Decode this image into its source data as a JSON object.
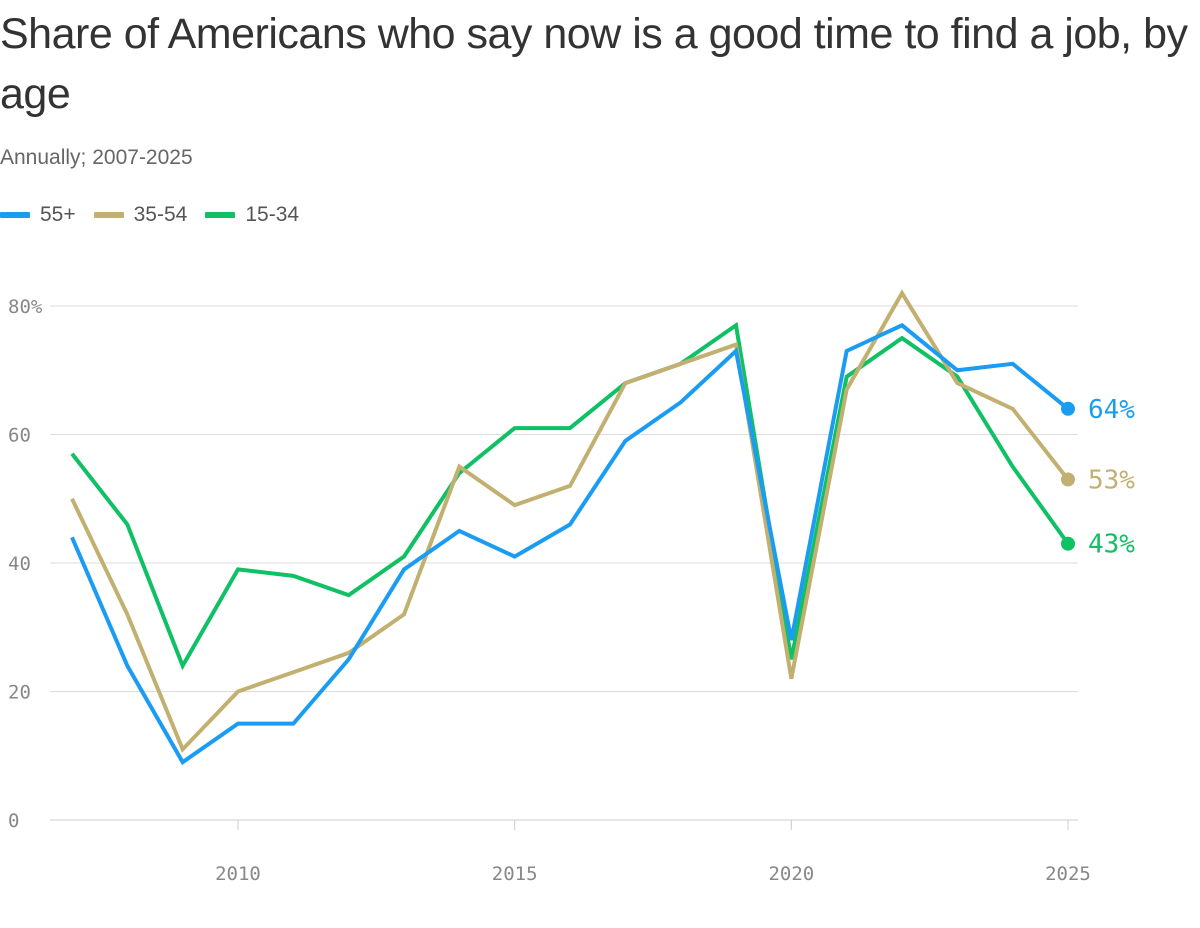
{
  "title": "Share of Americans who say now is a good time to find a job, by age",
  "subtitle": "Annually; 2007-2025",
  "chart_data": {
    "type": "line",
    "x": [
      2007,
      2008,
      2009,
      2010,
      2011,
      2012,
      2013,
      2014,
      2015,
      2016,
      2017,
      2018,
      2019,
      2020,
      2021,
      2022,
      2023,
      2024,
      2025
    ],
    "series": [
      {
        "name": "15-34",
        "color": "#10c064",
        "values": [
          57,
          46,
          24,
          39,
          38,
          35,
          41,
          54,
          61,
          61,
          68,
          71,
          77,
          25,
          69,
          75,
          69,
          55,
          43
        ],
        "end_label": "43%"
      },
      {
        "name": "35-54",
        "color": "#c2b070",
        "values": [
          50,
          32,
          11,
          20,
          23,
          26,
          32,
          55,
          49,
          52,
          68,
          71,
          74,
          22,
          67,
          82,
          68,
          64,
          53
        ],
        "end_label": "53%"
      },
      {
        "name": "55+",
        "color": "#1b9cf3",
        "values": [
          44,
          24,
          9,
          15,
          15,
          25,
          39,
          45,
          41,
          46,
          59,
          65,
          73,
          28,
          73,
          77,
          70,
          71,
          64
        ],
        "end_label": "64%"
      }
    ],
    "legend": [
      "55+",
      "35-54",
      "15-34"
    ],
    "legend_placement": "top-left",
    "y_ticks": [
      {
        "value": 0,
        "label": "0"
      },
      {
        "value": 20,
        "label": "20"
      },
      {
        "value": 40,
        "label": "40"
      },
      {
        "value": 60,
        "label": "60"
      },
      {
        "value": 80,
        "label": "80%"
      }
    ],
    "x_ticks": [
      {
        "value": 2010,
        "label": "2010"
      },
      {
        "value": 2015,
        "label": "2015"
      },
      {
        "value": 2020,
        "label": "2020"
      },
      {
        "value": 2025,
        "label": "2025"
      }
    ],
    "ylim": [
      0,
      80
    ],
    "xlim": [
      2007,
      2025
    ],
    "grid": true,
    "xlabel": "",
    "ylabel": ""
  }
}
